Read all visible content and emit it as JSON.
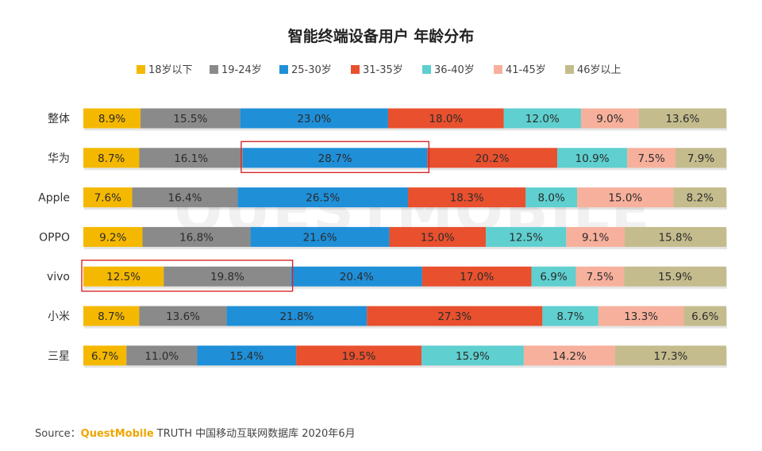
{
  "chart_data": {
    "type": "bar",
    "orientation": "horizontal",
    "stacked": true,
    "normalized": true,
    "title": "智能终端设备用户 年龄分布",
    "categories": [
      "整体",
      "华为",
      "Apple",
      "OPPO",
      "vivo",
      "小米",
      "三星"
    ],
    "series": [
      {
        "name": "18岁以下",
        "color": "#f5b800",
        "values": [
          8.9,
          8.7,
          7.6,
          9.2,
          12.5,
          8.7,
          6.7
        ]
      },
      {
        "name": "19-24岁",
        "color": "#8a8a8a",
        "values": [
          15.5,
          16.1,
          16.4,
          16.8,
          19.8,
          13.6,
          11.0
        ]
      },
      {
        "name": "25-30岁",
        "color": "#1f8fd8",
        "values": [
          23.0,
          28.7,
          26.5,
          21.6,
          20.4,
          21.8,
          15.4
        ]
      },
      {
        "name": "31-35岁",
        "color": "#e8502e",
        "values": [
          18.0,
          20.2,
          18.3,
          15.0,
          17.0,
          27.3,
          19.5
        ]
      },
      {
        "name": "36-40岁",
        "color": "#5fcfcf",
        "values": [
          12.0,
          10.9,
          8.0,
          12.5,
          6.9,
          8.7,
          15.9
        ]
      },
      {
        "name": "41-45岁",
        "color": "#f7b09c",
        "values": [
          9.0,
          7.5,
          15.0,
          9.1,
          7.5,
          13.3,
          14.2
        ]
      },
      {
        "name": "46岁以上",
        "color": "#c4bc8d",
        "values": [
          13.6,
          7.9,
          8.2,
          15.8,
          15.9,
          6.6,
          17.3
        ]
      }
    ],
    "value_suffix": "%",
    "legend_position": "top",
    "highlights": [
      {
        "category": "华为",
        "series": [
          "25-30岁"
        ]
      },
      {
        "category": "vivo",
        "series": [
          "18岁以下",
          "19-24岁"
        ]
      }
    ]
  },
  "source": {
    "prefix": "Source：",
    "brand": "QuestMobile",
    "rest": " TRUTH 中国移动互联网数据库 2020年6月"
  },
  "watermark": "QUESTMOBILE",
  "highlight_color": "#d62828"
}
